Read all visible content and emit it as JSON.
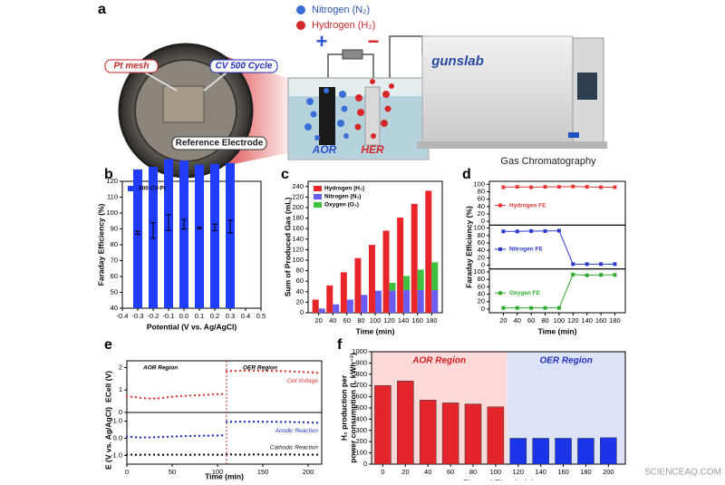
{
  "panel_labels": [
    "a",
    "b",
    "c",
    "d",
    "e",
    "f"
  ],
  "illustration": {
    "nitrogen": "Nitrogen (N₂)",
    "hydrogen": "Hydrogen (H₂)",
    "plus": "+",
    "minus": "−",
    "pt_mesh": "Pt mesh",
    "cv_cycle": "CV 500 Cycle",
    "reference": "Reference Electrode",
    "aor": "AOR",
    "her": "HER",
    "brand": "gunslab",
    "instrument": "Gas Chromatography"
  },
  "watermark": "SCIENCEAQ.COM",
  "chart_data": [
    {
      "type": "bar",
      "xlabel": "Potential (V vs. Ag/AgCl)",
      "ylabel": "Faraday Efficiency (%)",
      "x": [
        -0.3,
        -0.2,
        -0.1,
        0,
        0.1,
        0.2,
        0.3
      ],
      "series": [
        {
          "name": "500 CV-Pt",
          "color": "#1f3cff",
          "values": [
            87.5,
            89,
            94,
            93,
            90.5,
            91,
            91.5
          ],
          "errors": [
            1,
            5,
            5,
            3,
            0.5,
            2,
            4
          ]
        }
      ],
      "xlim": [
        -0.4,
        0.5
      ],
      "xticks": [
        -0.4,
        -0.3,
        -0.2,
        -0.1,
        {
          "value": 0,
          "label": "0.0"
        },
        0.1,
        0.2,
        0.3,
        0.4,
        0.5
      ],
      "ylim": [
        40,
        120
      ],
      "yticks": [
        40,
        50,
        60,
        70,
        80,
        90,
        100,
        110,
        120
      ],
      "legend": "upper left"
    },
    {
      "type": "bar",
      "xlabel": "Time (min)",
      "ylabel": "Sum of Produced Gas (mL)",
      "x": [
        20,
        40,
        60,
        80,
        100,
        120,
        140,
        160,
        180
      ],
      "series": [
        {
          "name": "Hydrogen (H₂)",
          "color": "#e8262a",
          "group": 0,
          "values": [
            25,
            52,
            77,
            104,
            129,
            156,
            181,
            207,
            232
          ]
        },
        {
          "name": "Nitrogen (N₂)",
          "color": "#6a5cf0",
          "group": 1,
          "values": [
            8,
            16,
            25,
            34,
            42,
            42,
            43,
            43,
            43
          ]
        },
        {
          "name": "Oxygen (O₂)",
          "color": "#3ec13e",
          "group": 1,
          "values": [
            0,
            0,
            0,
            0,
            0,
            15,
            27,
            39,
            53
          ]
        }
      ],
      "xlim": [
        5,
        195
      ],
      "xticks": [
        20,
        40,
        60,
        80,
        100,
        120,
        140,
        160,
        180
      ],
      "ylim": [
        0,
        250
      ],
      "yticks": [
        0,
        20,
        40,
        60,
        80,
        100,
        120,
        140,
        160,
        180,
        200,
        220,
        240
      ],
      "legend": "upper left"
    },
    {
      "type": "line",
      "xlabel": "Time (min)",
      "ylabel": "Faraday Efficiency (%)",
      "x": [
        20,
        40,
        60,
        80,
        100,
        120,
        140,
        160,
        180
      ],
      "panels": [
        {
          "ylim": [
            -10,
            108
          ],
          "yticks": [
            0,
            20,
            40,
            60,
            80,
            100
          ]
        },
        {
          "ylim": [
            -10,
            108
          ],
          "yticks": [
            0,
            20,
            40,
            60,
            80,
            100
          ]
        },
        {
          "ylim": [
            -10,
            108
          ],
          "yticks": [
            0,
            20,
            40,
            60,
            80,
            100
          ]
        }
      ],
      "series": [
        {
          "name": "Hydrogen FE",
          "color": "#e53935",
          "panel": 0,
          "values": [
            92,
            93,
            92,
            93,
            93,
            94,
            93,
            92,
            92
          ]
        },
        {
          "name": "Nitrogen FE",
          "color": "#2a3ad0",
          "panel": 1,
          "values": [
            91,
            91,
            92,
            92,
            93,
            3,
            3,
            3,
            3
          ]
        },
        {
          "name": "Oxygen FE",
          "color": "#2eaa2e",
          "panel": 2,
          "values": [
            3,
            3,
            3,
            3,
            3,
            93,
            91,
            92,
            92
          ]
        }
      ],
      "xlim": [
        0,
        195
      ],
      "xticks": [
        20,
        40,
        60,
        80,
        100,
        120,
        140,
        160,
        180
      ]
    },
    {
      "type": "scatter",
      "xlabel": "Time (min)",
      "x": [
        0,
        5,
        10,
        15,
        20,
        25,
        30,
        35,
        40,
        45,
        50,
        55,
        60,
        65,
        70,
        75,
        80,
        85,
        90,
        95,
        100,
        105,
        110,
        115,
        120,
        125,
        130,
        135,
        140,
        145,
        150,
        155,
        160,
        165,
        170,
        175,
        180,
        185,
        190,
        195,
        200,
        205,
        210
      ],
      "xlim": [
        0,
        215
      ],
      "xticks": [
        0,
        50,
        100,
        150,
        200
      ],
      "regions": [
        {
          "label": "AOR Region",
          "from": 0,
          "to": 110
        },
        {
          "label": "OER Region",
          "from": 110,
          "to": 215
        }
      ],
      "panels": [
        {
          "ylabel": "ECell (V)",
          "ylim": [
            0,
            2.3
          ],
          "yticks": [
            0,
            1,
            2
          ]
        },
        {
          "ylabel": "E (V vs. Ag/AgCl)",
          "ylim": [
            -1.5,
            1.5
          ],
          "yticks": [
            {
              "value": -1,
              "label": "-1.0"
            },
            {
              "value": 0,
              "label": "0.0"
            },
            {
              "value": 1,
              "label": "1.0"
            }
          ]
        }
      ],
      "series": [
        {
          "name": "Cell Voltage",
          "color": "#e53935",
          "panel": 0,
          "values": [
            0.72,
            0.7,
            0.68,
            0.65,
            0.63,
            0.62,
            0.62,
            0.63,
            0.65,
            0.68,
            0.7,
            0.72,
            0.73,
            0.74,
            0.75,
            0.76,
            0.77,
            0.78,
            0.79,
            0.8,
            0.81,
            0.82,
            1.84,
            1.85,
            1.85,
            1.86,
            1.86,
            1.86,
            1.86,
            1.86,
            1.85,
            1.85,
            1.85,
            1.85,
            1.84,
            1.84,
            1.83,
            1.82,
            1.81,
            1.8,
            1.79,
            1.78,
            1.76
          ]
        },
        {
          "name": "Anodic Reaction",
          "color": "#2030c0",
          "panel": 1,
          "values": [
            0.1,
            0.08,
            0.06,
            0.05,
            0.05,
            0.05,
            0.06,
            0.07,
            0.08,
            0.09,
            0.1,
            0.11,
            0.12,
            0.13,
            0.13,
            0.14,
            0.14,
            0.15,
            0.15,
            0.16,
            0.16,
            0.17,
            0.95,
            0.96,
            0.96,
            0.97,
            0.97,
            0.97,
            0.97,
            0.97,
            0.96,
            0.96,
            0.96,
            0.96,
            0.95,
            0.95,
            0.95,
            0.94,
            0.94,
            0.93,
            0.92,
            0.91,
            0.9
          ]
        },
        {
          "name": "Cathodic Reaction",
          "color": "#111111",
          "panel": 1,
          "values": [
            -0.95,
            -0.95,
            -0.96,
            -0.96,
            -0.95,
            -0.95,
            -0.95,
            -0.96,
            -0.96,
            -0.95,
            -0.95,
            -0.95,
            -0.95,
            -0.96,
            -0.96,
            -0.95,
            -0.95,
            -0.95,
            -0.95,
            -0.95,
            -0.96,
            -0.96,
            -0.94,
            -0.94,
            -0.95,
            -0.95,
            -0.95,
            -0.95,
            -0.94,
            -0.94,
            -0.95,
            -0.95,
            -0.95,
            -0.95,
            -0.95,
            -0.94,
            -0.94,
            -0.95,
            -0.95,
            -0.95,
            -0.95,
            -0.95,
            -0.95
          ]
        }
      ]
    },
    {
      "type": "bar",
      "xlabel": "Elapsed Time (min)",
      "ylabel": [
        "H₂ production per",
        "power consumption (L kWh⁻¹)"
      ],
      "x": [
        0,
        20,
        40,
        60,
        80,
        100,
        120,
        140,
        160,
        180,
        200
      ],
      "series": [
        {
          "values": [
            700,
            740,
            570,
            545,
            535,
            510,
            230,
            230,
            230,
            230,
            235
          ],
          "colors": [
            "#e3262b",
            "#e3262b",
            "#e3262b",
            "#e3262b",
            "#e3262b",
            "#e3262b",
            "#1a35e8",
            "#1a35e8",
            "#1a35e8",
            "#1a35e8",
            "#1a35e8"
          ]
        }
      ],
      "regions": [
        {
          "label": "AOR Region",
          "from": -10,
          "to": 110,
          "color": "#fbd9d9",
          "text_color": "#d62020"
        },
        {
          "label": "OER Region",
          "from": 110,
          "to": 215,
          "color": "#dce2f7",
          "text_color": "#2030c0"
        }
      ],
      "xlim": [
        -10,
        215
      ],
      "xticks": [
        0,
        20,
        40,
        60,
        80,
        100,
        120,
        140,
        160,
        180,
        200
      ],
      "ylim": [
        0,
        1000
      ],
      "yticks": [
        0,
        100,
        200,
        300,
        400,
        500,
        600,
        700,
        800,
        900,
        1000
      ]
    }
  ]
}
